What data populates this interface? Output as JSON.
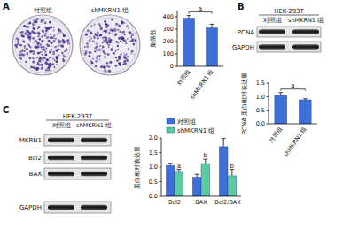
{
  "chart_data": [
    {
      "type": "bar",
      "ylabel": "集落数",
      "categories": [
        "对照组",
        "shMKRN1 组"
      ],
      "values": [
        390,
        310
      ],
      "errors": [
        20,
        30
      ],
      "color": "#3d6fd6",
      "ylim": [
        0,
        450
      ],
      "yticks": [
        0,
        100,
        200,
        300,
        400
      ],
      "annotations": [
        "a"
      ]
    },
    {
      "type": "bar",
      "ylabel": "PCNA 蛋白相对表达量",
      "categories": [
        "对照组",
        "shMKRN1 组"
      ],
      "values": [
        1.05,
        0.88
      ],
      "errors": [
        0.1,
        0.04
      ],
      "color": "#3d6fd6",
      "ylim": [
        0,
        1.5
      ],
      "yticks": [
        {
          "value": 0,
          "label": "0.0"
        },
        {
          "value": 0.5,
          "label": "0.5"
        },
        {
          "value": 1,
          "label": "1.0"
        },
        {
          "value": 1.5,
          "label": "1.5"
        }
      ],
      "annotations": [
        "a"
      ]
    },
    {
      "type": "bar",
      "ylabel": "蛋白相对表达量",
      "categories": [
        "Bcl2",
        "BAX",
        "Bcl2/BAX"
      ],
      "series": [
        {
          "name": "对照组",
          "color": "#3d6fd6",
          "values": [
            1.05,
            0.65,
            1.7
          ],
          "errors": [
            0.08,
            0.1,
            0.28
          ]
        },
        {
          "name": "shMKRN1 组",
          "color": "#5bcca0",
          "values": [
            0.85,
            1.12,
            0.7
          ],
          "errors": [
            0.07,
            0.15,
            0.22
          ]
        }
      ],
      "ylim": [
        0,
        2.0
      ],
      "yticks": [
        {
          "value": 0,
          "label": "0.0"
        },
        {
          "value": 0.5,
          "label": "0.5"
        },
        {
          "value": 1,
          "label": "1.0"
        },
        {
          "value": 1.5,
          "label": "1.5"
        },
        {
          "value": 2,
          "label": "2.0"
        }
      ],
      "legend": "top-left",
      "annotations": [
        "a",
        "b",
        "b"
      ]
    }
  ],
  "panels": [
    {
      "label": "A",
      "dishes": [
        "对照组",
        "shMKRN1 组"
      ]
    },
    {
      "label": "B",
      "cell_line": "HEK-293T",
      "columns": [
        "对照组",
        "shMKRN1 组"
      ],
      "rows": [
        "PCNA",
        "GAPDH"
      ]
    },
    {
      "label": "C",
      "cell_line": "HEK-293T",
      "columns": [
        "对照组",
        "shMKRN1 组"
      ],
      "rows": [
        "MKRN1",
        "Bcl2",
        "BAX",
        "GAPDH"
      ]
    }
  ]
}
